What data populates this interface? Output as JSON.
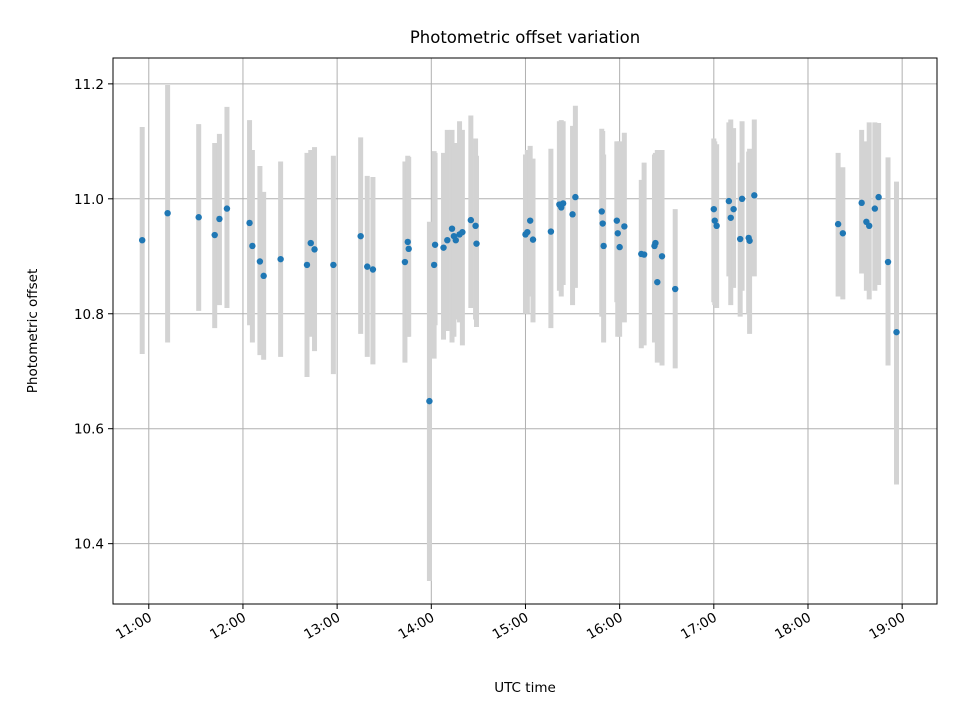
{
  "chart_data": {
    "type": "scatter",
    "title": "Photometric offset variation",
    "xlabel": "UTC time",
    "ylabel": "Photometric offset",
    "x_unit": "hours UTC",
    "xlim": [
      10.62,
      19.37
    ],
    "ylim": [
      10.295,
      11.245
    ],
    "grid": true,
    "x_ticks": [
      "11:00",
      "12:00",
      "13:00",
      "14:00",
      "15:00",
      "16:00",
      "17:00",
      "18:00",
      "19:00"
    ],
    "x_tick_values": [
      11,
      12,
      13,
      14,
      15,
      16,
      17,
      18,
      19
    ],
    "y_ticks": [
      "10.4",
      "10.6",
      "10.8",
      "11.0",
      "11.2"
    ],
    "y_tick_values": [
      10.4,
      10.6,
      10.8,
      11.0,
      11.2
    ],
    "point_color": "#1f77b4",
    "errorbar_color": "#d3d3d3",
    "series": [
      {
        "x": [
          10.93,
          11.2,
          11.53,
          11.7,
          11.75,
          11.83,
          12.07,
          12.1,
          12.18,
          12.22,
          12.4,
          12.68,
          12.72,
          12.76,
          12.96,
          13.25,
          13.32,
          13.38,
          13.72,
          13.75,
          13.76,
          13.98,
          14.03,
          14.04,
          14.13,
          14.17,
          14.22,
          14.24,
          14.26,
          14.3,
          14.33,
          14.42,
          14.47,
          14.48,
          15.0,
          15.02,
          15.05,
          15.08,
          15.27,
          15.36,
          15.38,
          15.4,
          15.5,
          15.53,
          15.81,
          15.82,
          15.83,
          15.97,
          15.98,
          16.0,
          16.05,
          16.23,
          16.26,
          16.37,
          16.38,
          16.4,
          16.45,
          16.59,
          17.0,
          17.01,
          17.03,
          17.16,
          17.18,
          17.21,
          17.28,
          17.3,
          17.37,
          17.38,
          17.43,
          18.32,
          18.37,
          18.57,
          18.62,
          18.65,
          18.71,
          18.75,
          18.85,
          18.94
        ],
        "y": [
          10.928,
          10.975,
          10.968,
          10.937,
          10.965,
          10.983,
          10.958,
          10.918,
          10.891,
          10.866,
          10.895,
          10.885,
          10.923,
          10.912,
          10.885,
          10.935,
          10.882,
          10.877,
          10.89,
          10.925,
          10.913,
          10.648,
          10.885,
          10.92,
          10.915,
          10.928,
          10.948,
          10.935,
          10.928,
          10.938,
          10.942,
          10.963,
          10.953,
          10.922,
          10.938,
          10.942,
          10.962,
          10.929,
          10.943,
          10.99,
          10.985,
          10.992,
          10.973,
          11.003,
          10.978,
          10.957,
          10.918,
          10.962,
          10.94,
          10.916,
          10.952,
          10.904,
          10.903,
          10.918,
          10.923,
          10.855,
          10.9,
          10.843,
          10.982,
          10.962,
          10.953,
          10.996,
          10.967,
          10.982,
          10.93,
          11.0,
          10.932,
          10.927,
          11.006,
          10.956,
          10.94,
          10.993,
          10.96,
          10.953,
          10.983,
          11.003,
          10.89,
          10.768
        ],
        "y_err_low": [
          10.73,
          10.75,
          10.805,
          10.775,
          10.815,
          10.81,
          10.78,
          10.75,
          10.728,
          10.72,
          10.725,
          10.69,
          10.76,
          10.735,
          10.695,
          10.765,
          10.725,
          10.712,
          10.715,
          10.76,
          10.76,
          10.335,
          10.722,
          10.78,
          10.755,
          10.77,
          10.75,
          10.76,
          10.79,
          10.785,
          10.745,
          10.81,
          10.79,
          10.777,
          10.8,
          10.8,
          10.83,
          10.785,
          10.775,
          10.84,
          10.83,
          10.85,
          10.815,
          10.845,
          10.795,
          10.795,
          10.75,
          10.82,
          10.76,
          10.76,
          10.785,
          10.74,
          10.745,
          10.75,
          10.76,
          10.715,
          10.71,
          10.705,
          10.82,
          10.815,
          10.81,
          10.865,
          10.815,
          10.845,
          10.795,
          10.84,
          10.8,
          10.765,
          10.865,
          10.83,
          10.825,
          10.87,
          10.84,
          10.825,
          10.84,
          10.85,
          10.71,
          10.503
        ],
        "y_err_high": [
          11.125,
          11.198,
          11.13,
          11.097,
          11.113,
          11.16,
          11.137,
          11.085,
          11.057,
          11.012,
          11.065,
          11.08,
          11.085,
          11.09,
          11.075,
          11.107,
          11.04,
          11.038,
          11.065,
          11.075,
          11.073,
          10.96,
          11.083,
          11.08,
          11.08,
          11.12,
          11.12,
          11.092,
          11.097,
          11.135,
          11.12,
          11.145,
          11.105,
          11.075,
          11.077,
          11.085,
          11.092,
          11.07,
          11.087,
          11.135,
          11.137,
          11.135,
          11.127,
          11.162,
          11.122,
          11.118,
          11.077,
          11.1,
          11.1,
          11.1,
          11.115,
          11.033,
          11.063,
          11.077,
          11.08,
          11.085,
          11.085,
          10.982,
          11.105,
          11.1,
          11.095,
          11.133,
          11.138,
          11.123,
          11.063,
          11.135,
          11.082,
          11.087,
          11.138,
          11.08,
          11.055,
          11.12,
          11.1,
          11.133,
          11.133,
          11.132,
          11.072,
          11.03
        ]
      }
    ]
  }
}
